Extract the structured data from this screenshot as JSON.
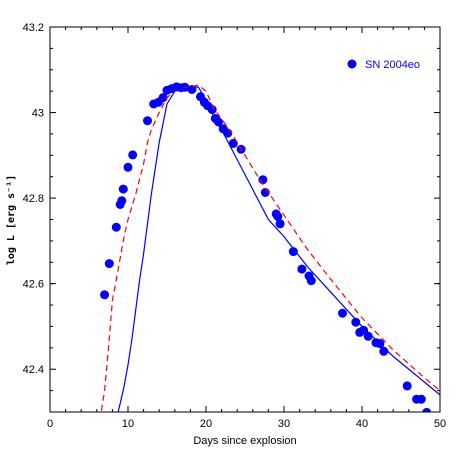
{
  "chart_data": {
    "type": "scatter",
    "xlabel": "Days since explosion",
    "ylabel": "log L [erg s⁻¹]",
    "xlim": [
      0,
      50
    ],
    "ylim": [
      42.3,
      43.2
    ],
    "x_ticks": [
      0,
      10,
      20,
      30,
      40,
      50
    ],
    "x_tick_labels": [
      "0",
      "10",
      "20",
      "30",
      "40",
      "50"
    ],
    "y_ticks": [
      42.4,
      42.6,
      42.8,
      43.0,
      43.2
    ],
    "y_tick_labels": [
      "42.4",
      "42.6",
      "42.8",
      "43",
      "43.2"
    ],
    "legend_position": "top-right",
    "grid": false,
    "series": [
      {
        "name": "SN 2004eo",
        "kind": "points",
        "color": "#0000ff",
        "x": [
          7.0,
          7.6,
          8.5,
          9.0,
          9.2,
          9.4,
          10.0,
          10.6,
          12.5,
          13.3,
          13.9,
          14.5,
          15.0,
          15.6,
          16.2,
          16.8,
          17.3,
          18.2,
          19.3,
          19.8,
          20.2,
          20.8,
          21.2,
          21.6,
          22.2,
          22.8,
          23.5,
          24.5,
          27.3,
          27.6,
          29.0,
          29.2,
          29.5,
          31.2,
          32.3,
          33.2,
          33.5,
          37.5,
          39.2,
          39.7,
          40.2,
          40.8,
          41.8,
          42.3,
          42.8,
          45.8,
          47.0,
          47.6,
          48.3
        ],
        "y": [
          42.574,
          42.647,
          42.732,
          42.785,
          42.794,
          42.821,
          42.872,
          42.901,
          42.981,
          43.02,
          43.024,
          43.035,
          43.052,
          43.056,
          43.06,
          43.058,
          43.059,
          43.054,
          43.037,
          43.024,
          43.016,
          43.007,
          42.986,
          42.978,
          42.962,
          42.952,
          42.928,
          42.914,
          42.843,
          42.813,
          42.763,
          42.757,
          42.74,
          42.675,
          42.634,
          42.618,
          42.607,
          42.531,
          42.51,
          42.486,
          42.491,
          42.477,
          42.462,
          42.46,
          42.442,
          42.361,
          42.33,
          42.33,
          42.299
        ]
      },
      {
        "name": "",
        "kind": "dashed-line",
        "color": "#ff0000",
        "x": [
          6.4,
          7.0,
          7.5,
          8.0,
          8.5,
          9.0,
          9.5,
          10.0,
          11.0,
          12.0,
          12.5,
          13.0,
          14.0,
          15.0,
          16.0,
          17.0,
          18.0,
          19.0,
          20.0,
          21.0,
          22.0,
          23.0,
          25.0,
          27.0,
          30.0,
          33.0,
          36.0,
          40.0,
          44.0,
          48.0,
          50.0
        ],
        "y": [
          42.28,
          42.35,
          42.45,
          42.56,
          42.61,
          42.66,
          42.71,
          42.75,
          42.81,
          42.88,
          42.93,
          42.96,
          43.0,
          43.035,
          43.05,
          43.057,
          43.06,
          43.064,
          43.05,
          43.01,
          42.985,
          42.96,
          42.9,
          42.84,
          42.76,
          42.68,
          42.61,
          42.52,
          42.445,
          42.38,
          42.35
        ]
      },
      {
        "name": "",
        "kind": "solid-line",
        "color": "#0000ff",
        "x": [
          8.6,
          9.0,
          9.5,
          10.0,
          10.5,
          11.0,
          11.5,
          12.0,
          13.0,
          14.0,
          15.0,
          16.0,
          17.0,
          18.0,
          19.0,
          20.0,
          21.0,
          22.0,
          24.0,
          26.0,
          28.0,
          30.0,
          33.0,
          36.0,
          40.0,
          44.0,
          48.0,
          50.0
        ],
        "y": [
          42.29,
          42.32,
          42.36,
          42.41,
          42.47,
          42.54,
          42.61,
          42.67,
          42.81,
          42.93,
          43.02,
          43.05,
          43.056,
          43.058,
          43.06,
          43.03,
          42.99,
          42.96,
          42.89,
          42.82,
          42.75,
          42.71,
          42.64,
          42.58,
          42.5,
          42.43,
          42.37,
          42.34
        ]
      }
    ]
  }
}
